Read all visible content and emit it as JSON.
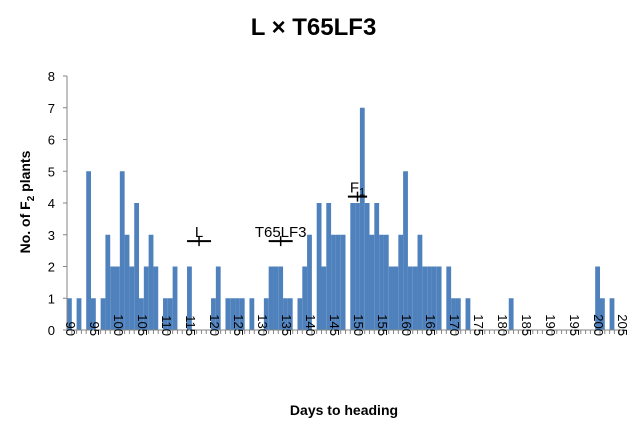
{
  "chart_data": {
    "type": "bar",
    "title": "L × T65LF3",
    "xlabel": "Days to heading",
    "ylabel_main": "No. of F",
    "ylabel_sub": "2",
    "ylabel_tail": " plants",
    "xlim": [
      89.5,
      205.5
    ],
    "ylim": [
      0,
      8
    ],
    "yticks": [
      0,
      1,
      2,
      3,
      4,
      5,
      6,
      7,
      8
    ],
    "xticks": [
      90,
      95,
      100,
      105,
      110,
      115,
      120,
      125,
      130,
      135,
      140,
      145,
      150,
      155,
      160,
      165,
      170,
      175,
      180,
      185,
      190,
      195,
      200,
      205
    ],
    "x": [
      90,
      91,
      92,
      93,
      94,
      95,
      96,
      97,
      98,
      99,
      100,
      101,
      102,
      103,
      104,
      105,
      106,
      107,
      108,
      109,
      110,
      111,
      112,
      113,
      114,
      115,
      116,
      117,
      118,
      119,
      120,
      121,
      122,
      123,
      124,
      125,
      126,
      127,
      128,
      129,
      130,
      131,
      132,
      133,
      134,
      135,
      136,
      137,
      138,
      139,
      140,
      141,
      142,
      143,
      144,
      145,
      146,
      147,
      148,
      149,
      150,
      151,
      152,
      153,
      154,
      155,
      156,
      157,
      158,
      159,
      160,
      161,
      162,
      163,
      164,
      165,
      166,
      167,
      168,
      169,
      170,
      171,
      172,
      173,
      174,
      175,
      176,
      177,
      178,
      179,
      180,
      181,
      182,
      183,
      184,
      185,
      186,
      187,
      188,
      189,
      190,
      191,
      192,
      193,
      194,
      195,
      196,
      197,
      198,
      199,
      200,
      201,
      202,
      203,
      204,
      205
    ],
    "values": [
      1,
      0,
      1,
      0,
      5,
      1,
      0,
      1,
      3,
      2,
      2,
      5,
      3,
      2,
      4,
      1,
      2,
      3,
      2,
      0,
      1,
      1,
      2,
      0,
      0,
      2,
      0,
      0,
      0,
      0,
      1,
      2,
      0,
      1,
      1,
      1,
      1,
      0,
      1,
      0,
      0,
      1,
      2,
      2,
      2,
      1,
      1,
      0,
      1,
      2,
      3,
      0,
      4,
      2,
      4,
      3,
      3,
      3,
      0,
      4,
      4,
      7,
      4,
      3,
      4,
      3,
      3,
      2,
      2,
      3,
      5,
      2,
      2,
      3,
      2,
      2,
      2,
      2,
      0,
      2,
      1,
      1,
      0,
      1,
      0,
      0,
      0,
      0,
      0,
      0,
      0,
      0,
      1,
      0,
      0,
      0,
      0,
      0,
      0,
      0,
      0,
      0,
      0,
      0,
      0,
      0,
      0,
      0,
      0,
      0,
      2,
      1,
      0,
      1,
      0,
      0
    ],
    "annotations": [
      {
        "label": "L",
        "x": 117,
        "y": 2.8,
        "half_width": 2.5
      },
      {
        "label": "T65LF3",
        "x": 134,
        "y": 2.8,
        "half_width": 2.5
      },
      {
        "label_main": "F",
        "label_sub": "1",
        "x": 150,
        "y": 4.2,
        "half_width": 2
      }
    ],
    "bar_color": "#4f81bd",
    "grid": false
  }
}
